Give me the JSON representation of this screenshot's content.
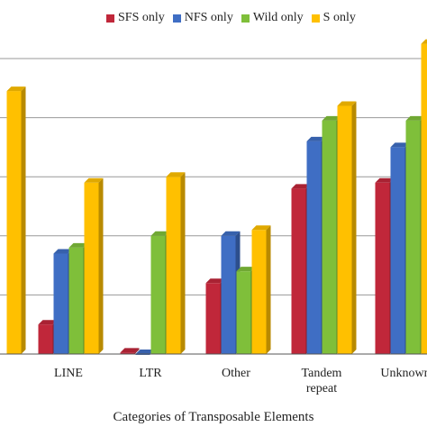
{
  "chart_data": {
    "type": "bar",
    "title": "",
    "xlabel": "Categories of Transposable Elements",
    "ylabel": "",
    "categories": [
      "",
      "LINE",
      "LTR",
      "Other",
      "Tandem\nrepeat",
      "Unknown"
    ],
    "series": [
      {
        "name": "SFS only",
        "color": "#c0273a",
        "values": [
          null,
          10,
          0.5,
          24,
          56,
          58
        ]
      },
      {
        "name": "NFS only",
        "color": "#3f6ec4",
        "values": [
          null,
          34,
          0,
          40,
          72,
          70
        ]
      },
      {
        "name": "Wild only",
        "color": "#7fbf3a",
        "values": [
          null,
          36,
          40,
          28,
          79,
          79
        ]
      },
      {
        "name": "S only",
        "color": "#ffc000",
        "values": [
          89,
          58,
          60,
          42,
          84,
          105
        ]
      }
    ],
    "ylim": [
      0,
      100
    ],
    "grid": true,
    "legend_position": "top"
  }
}
